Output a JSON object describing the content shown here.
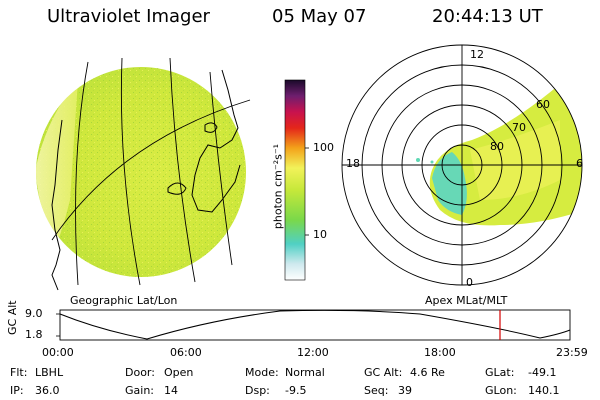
{
  "header": {
    "instrument": "Ultraviolet Imager",
    "date": "05 May 07",
    "time": "20:44:13 UT"
  },
  "colorbar": {
    "unit_label": "photon cm⁻²s⁻¹",
    "ticks": [
      "100",
      "10"
    ]
  },
  "polar_plot": {
    "mlt_labels": {
      "top": "12",
      "left": "18",
      "right": "6",
      "bottom": "0"
    },
    "lat_labels": [
      "60",
      "70",
      "80"
    ]
  },
  "projection_labels": {
    "left": "Geographic Lat/Lon",
    "right": "Apex MLat/MLT"
  },
  "altitude_plot": {
    "axis_label": "GC Alt",
    "y_ticks": [
      "9.0",
      "1.8"
    ],
    "x_ticks": [
      "00:00",
      "06:00",
      "12:00",
      "18:00",
      "23:59"
    ],
    "current_marker_color": "#d40000"
  },
  "info": {
    "flt_label": "Flt:",
    "flt_value": "LBHL",
    "door_label": "Door:",
    "door_value": "Open",
    "mode_label": "Mode:",
    "mode_value": "Normal",
    "gcalt_label": "GC Alt:",
    "gcalt_value": "4.6 Re",
    "glat_label": "GLat:",
    "glat_value": "-49.1",
    "ip_label": "IP:",
    "ip_value": "36.0",
    "gain_label": "Gain:",
    "gain_value": "14",
    "dsp_label": "Dsp:",
    "dsp_value": "-9.5",
    "seq_label": "Seq:",
    "seq_value": "39",
    "glon_label": "GLon:",
    "glon_value": "140.1"
  },
  "colors": {
    "image_green": "#c9e83a",
    "image_yellow": "#eef25a",
    "image_cyan": "#5fd8b4",
    "marker": "#d40000"
  }
}
